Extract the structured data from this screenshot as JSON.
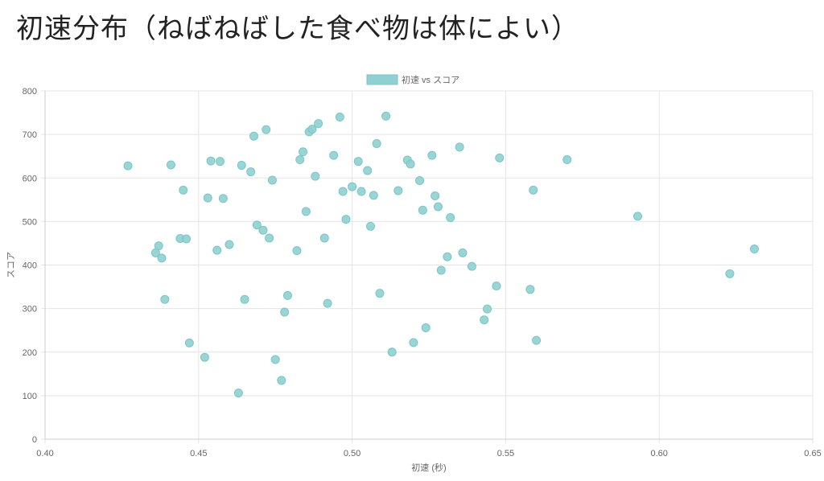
{
  "page": {
    "title": "初速分布（ねばねばした食べ物は体によい）"
  },
  "colors": {
    "point_fill": "#8fd0d2",
    "point_stroke": "#7cc5c7",
    "grid": "#e5e5e5",
    "axis": "#cccccc"
  },
  "chart_data": {
    "type": "scatter",
    "title": "",
    "xlabel": "初速 (秒)",
    "ylabel": "スコア",
    "xlim": [
      0.4,
      0.65
    ],
    "ylim": [
      0,
      800
    ],
    "x_ticks": [
      "0.40",
      "0.45",
      "0.50",
      "0.55",
      "0.60",
      "0.65"
    ],
    "y_ticks": [
      "0",
      "100",
      "200",
      "300",
      "400",
      "500",
      "600",
      "700",
      "800"
    ],
    "grid": true,
    "legend": {
      "position": "top-center",
      "entries": [
        "初速 vs スコア"
      ]
    },
    "series": [
      {
        "name": "初速 vs スコア",
        "points": [
          [
            0.427,
            628
          ],
          [
            0.436,
            428
          ],
          [
            0.437,
            444
          ],
          [
            0.438,
            416
          ],
          [
            0.439,
            321
          ],
          [
            0.441,
            630
          ],
          [
            0.444,
            461
          ],
          [
            0.445,
            572
          ],
          [
            0.446,
            460
          ],
          [
            0.447,
            221
          ],
          [
            0.452,
            188
          ],
          [
            0.453,
            554
          ],
          [
            0.454,
            639
          ],
          [
            0.456,
            434
          ],
          [
            0.457,
            638
          ],
          [
            0.458,
            553
          ],
          [
            0.46,
            447
          ],
          [
            0.463,
            106
          ],
          [
            0.464,
            629
          ],
          [
            0.465,
            321
          ],
          [
            0.467,
            614
          ],
          [
            0.468,
            696
          ],
          [
            0.469,
            492
          ],
          [
            0.471,
            480
          ],
          [
            0.472,
            711
          ],
          [
            0.473,
            462
          ],
          [
            0.474,
            595
          ],
          [
            0.475,
            183
          ],
          [
            0.477,
            135
          ],
          [
            0.478,
            292
          ],
          [
            0.479,
            330
          ],
          [
            0.482,
            433
          ],
          [
            0.483,
            642
          ],
          [
            0.484,
            660
          ],
          [
            0.485,
            523
          ],
          [
            0.486,
            706
          ],
          [
            0.487,
            712
          ],
          [
            0.488,
            604
          ],
          [
            0.489,
            725
          ],
          [
            0.491,
            462
          ],
          [
            0.492,
            312
          ],
          [
            0.494,
            652
          ],
          [
            0.496,
            740
          ],
          [
            0.497,
            569
          ],
          [
            0.498,
            505
          ],
          [
            0.5,
            580
          ],
          [
            0.502,
            638
          ],
          [
            0.503,
            569
          ],
          [
            0.505,
            617
          ],
          [
            0.506,
            489
          ],
          [
            0.507,
            560
          ],
          [
            0.508,
            679
          ],
          [
            0.509,
            335
          ],
          [
            0.511,
            742
          ],
          [
            0.513,
            200
          ],
          [
            0.515,
            571
          ],
          [
            0.518,
            641
          ],
          [
            0.519,
            632
          ],
          [
            0.52,
            222
          ],
          [
            0.522,
            594
          ],
          [
            0.523,
            526
          ],
          [
            0.524,
            256
          ],
          [
            0.526,
            652
          ],
          [
            0.527,
            559
          ],
          [
            0.528,
            534
          ],
          [
            0.529,
            388
          ],
          [
            0.531,
            419
          ],
          [
            0.532,
            509
          ],
          [
            0.535,
            671
          ],
          [
            0.536,
            428
          ],
          [
            0.539,
            397
          ],
          [
            0.543,
            274
          ],
          [
            0.544,
            299
          ],
          [
            0.547,
            352
          ],
          [
            0.548,
            646
          ],
          [
            0.558,
            344
          ],
          [
            0.559,
            572
          ],
          [
            0.56,
            227
          ],
          [
            0.57,
            642
          ],
          [
            0.593,
            512
          ],
          [
            0.623,
            380
          ],
          [
            0.631,
            437
          ]
        ]
      }
    ]
  }
}
